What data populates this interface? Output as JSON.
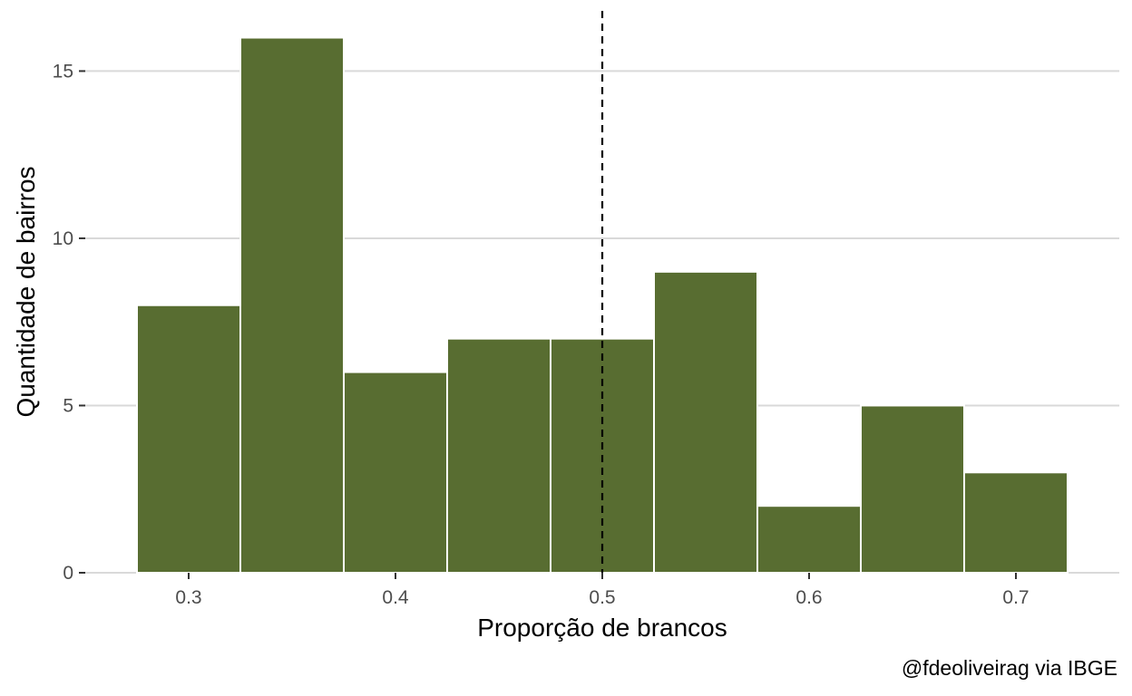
{
  "chart_data": {
    "type": "bar",
    "subtype": "histogram",
    "bins": [
      {
        "start": 0.275,
        "end": 0.325,
        "count": 8
      },
      {
        "start": 0.325,
        "end": 0.375,
        "count": 16
      },
      {
        "start": 0.375,
        "end": 0.425,
        "count": 6
      },
      {
        "start": 0.425,
        "end": 0.475,
        "count": 7
      },
      {
        "start": 0.475,
        "end": 0.525,
        "count": 7
      },
      {
        "start": 0.525,
        "end": 0.575,
        "count": 9
      },
      {
        "start": 0.575,
        "end": 0.625,
        "count": 2
      },
      {
        "start": 0.625,
        "end": 0.675,
        "count": 5
      },
      {
        "start": 0.675,
        "end": 0.725,
        "count": 3
      }
    ],
    "reference_line": {
      "x": 0.5,
      "style": "dashed",
      "color": "#000000"
    },
    "xlabel": "Proporção de brancos",
    "ylabel": "Quantidade de bairros",
    "caption": "@fdeoliveirag via IBGE",
    "xlim": [
      0.25,
      0.75
    ],
    "ylim": [
      0,
      16.8
    ],
    "xticks": [
      {
        "value": 0.3,
        "label": "0.3"
      },
      {
        "value": 0.4,
        "label": "0.4"
      },
      {
        "value": 0.5,
        "label": "0.5"
      },
      {
        "value": 0.6,
        "label": "0.6"
      },
      {
        "value": 0.7,
        "label": "0.7"
      }
    ],
    "yticks": [
      {
        "value": 0,
        "label": "0"
      },
      {
        "value": 5,
        "label": "5"
      },
      {
        "value": 10,
        "label": "10"
      },
      {
        "value": 15,
        "label": "15"
      }
    ],
    "grid": "horizontal",
    "legend": "none",
    "colors": {
      "bar_fill": "#586d31",
      "bar_border": "#ffffff",
      "grid": "#d9d9d9",
      "tick": "#333333"
    }
  }
}
